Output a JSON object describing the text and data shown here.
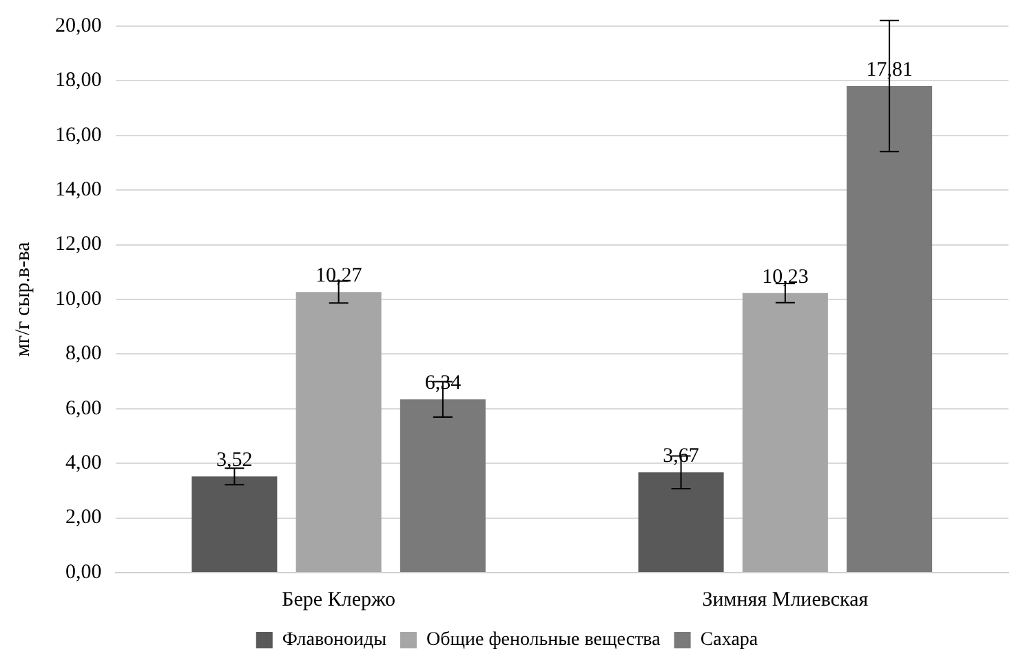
{
  "chart_data": {
    "type": "bar",
    "ylabel": "мг/г сыр.в-ва",
    "categories": [
      "Бере Клержо",
      "Зимняя Млиевская"
    ],
    "series": [
      {
        "name": "Флавоноиды",
        "color": "#595959",
        "values": [
          3.52,
          3.67
        ],
        "value_labels": [
          "3,52",
          "3,67"
        ],
        "errors": [
          0.3,
          0.6
        ]
      },
      {
        "name": "Общие фенольные вещества",
        "color": "#a6a6a6",
        "values": [
          10.27,
          10.23
        ],
        "value_labels": [
          "10,27",
          "10,23"
        ],
        "errors": [
          0.4,
          0.35
        ]
      },
      {
        "name": "Сахара",
        "color": "#7a7a7a",
        "values": [
          6.34,
          17.81
        ],
        "value_labels": [
          "6,34",
          "17,81"
        ],
        "errors": [
          0.65,
          2.4
        ]
      }
    ],
    "ylim": [
      0,
      20
    ],
    "yticks": [
      {
        "value": 0,
        "label": "0,00"
      },
      {
        "value": 2,
        "label": "2,00"
      },
      {
        "value": 4,
        "label": "4,00"
      },
      {
        "value": 6,
        "label": "6,00"
      },
      {
        "value": 8,
        "label": "8,00"
      },
      {
        "value": 10,
        "label": "10,00"
      },
      {
        "value": 12,
        "label": "12,00"
      },
      {
        "value": 14,
        "label": "14,00"
      },
      {
        "value": 16,
        "label": "16,00"
      },
      {
        "value": 18,
        "label": "18,00"
      },
      {
        "value": 20,
        "label": "20,00"
      }
    ],
    "grid": "y",
    "legend": "bottom"
  }
}
